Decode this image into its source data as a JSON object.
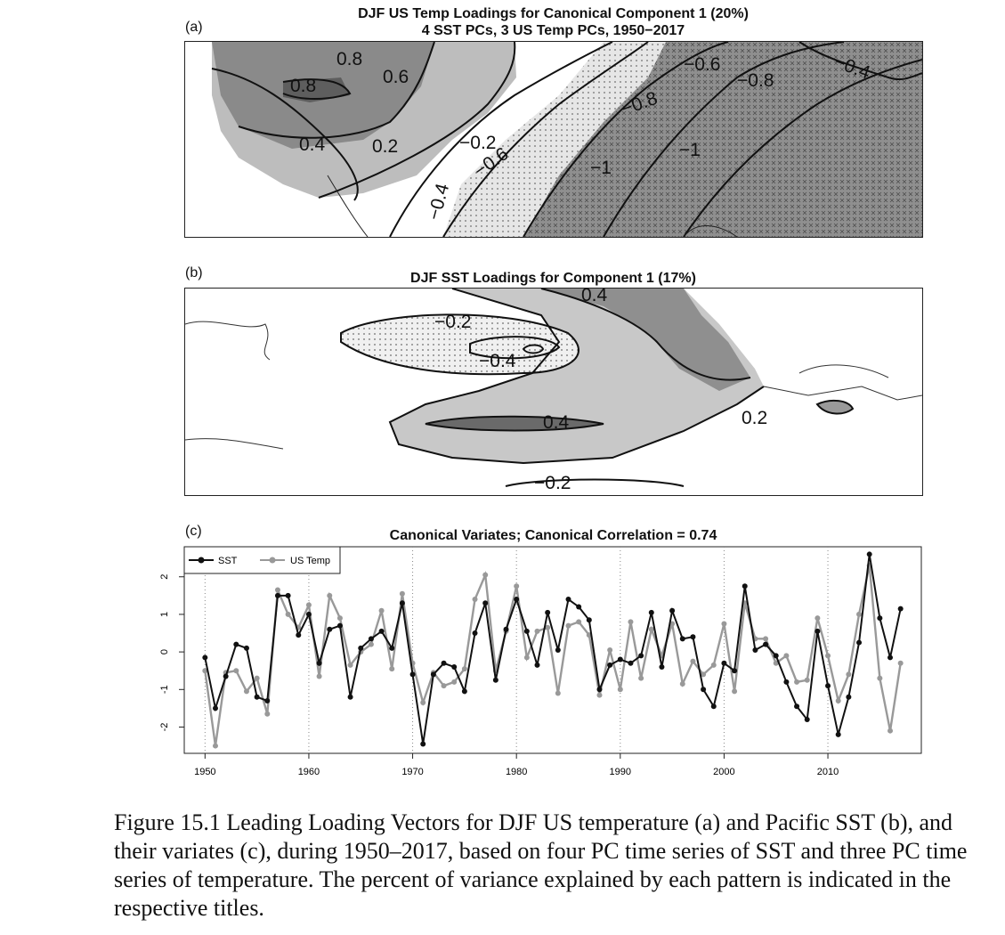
{
  "panels": {
    "a": {
      "label": "(a)",
      "title_line1": "DJF US Temp Loadings for Canonical Component 1 (20%)",
      "title_line2": "4 SST PCs, 3 US Temp PCs, 1950−2017",
      "contour_labels": [
        "0.8",
        "0.8",
        "0.6",
        "0.4",
        "0.2",
        "−0.2",
        "−0.4",
        "−0.6",
        "−0.8",
        "−1",
        "−1",
        "−0.6",
        "−0.8",
        "−0.4"
      ]
    },
    "b": {
      "label": "(b)",
      "title": "DJF SST Loadings for Component 1 (17%)",
      "contour_labels": [
        "0.4",
        "−0.2",
        "−0.4",
        "0.4",
        "0.2",
        "−0.2"
      ]
    },
    "c": {
      "label": "(c)",
      "title": "Canonical Variates; Canonical Correlation = 0.74"
    }
  },
  "chart_data": {
    "type": "line",
    "x": [
      1950,
      1951,
      1952,
      1953,
      1954,
      1955,
      1956,
      1957,
      1958,
      1959,
      1960,
      1961,
      1962,
      1963,
      1964,
      1965,
      1966,
      1967,
      1968,
      1969,
      1970,
      1971,
      1972,
      1973,
      1974,
      1975,
      1976,
      1977,
      1978,
      1979,
      1980,
      1981,
      1982,
      1983,
      1984,
      1985,
      1986,
      1987,
      1988,
      1989,
      1990,
      1991,
      1992,
      1993,
      1994,
      1995,
      1996,
      1997,
      1998,
      1999,
      2000,
      2001,
      2002,
      2003,
      2004,
      2005,
      2006,
      2007,
      2008,
      2009,
      2010,
      2011,
      2012,
      2013,
      2014,
      2015,
      2016,
      2017
    ],
    "series": [
      {
        "name": "SST",
        "color": "#111111",
        "values": [
          -0.15,
          -1.5,
          -0.65,
          0.2,
          0.1,
          -1.2,
          -1.3,
          1.5,
          1.5,
          0.45,
          1.0,
          -0.3,
          0.6,
          0.7,
          -1.2,
          0.1,
          0.35,
          0.55,
          0.1,
          1.3,
          -0.6,
          -2.45,
          -0.6,
          -0.3,
          -0.4,
          -1.05,
          0.5,
          1.3,
          -0.75,
          0.6,
          1.4,
          0.55,
          -0.35,
          1.05,
          0.05,
          1.4,
          1.2,
          0.85,
          -1.0,
          -0.35,
          -0.2,
          -0.3,
          -0.1,
          1.05,
          -0.4,
          1.1,
          0.35,
          0.4,
          -1.0,
          -1.45,
          -0.3,
          -0.5,
          1.75,
          0.05,
          0.2,
          -0.1,
          -0.8,
          -1.45,
          -1.8,
          0.55,
          -0.9,
          -2.2,
          -1.2,
          0.25,
          2.6,
          0.9,
          -0.15,
          1.15
        ]
      },
      {
        "name": "US Temp",
        "color": "#999999",
        "values": [
          -0.5,
          -2.5,
          -0.55,
          -0.5,
          -1.05,
          -0.7,
          -1.65,
          1.65,
          1.0,
          0.65,
          1.25,
          -0.65,
          1.5,
          0.9,
          -0.35,
          0.0,
          0.2,
          1.1,
          -0.45,
          1.55,
          -0.3,
          -1.35,
          -0.55,
          -0.9,
          -0.8,
          -0.45,
          1.4,
          2.05,
          -0.5,
          0.55,
          1.75,
          -0.15,
          0.55,
          0.65,
          -1.1,
          0.7,
          0.8,
          0.45,
          -1.15,
          0.05,
          -1.0,
          0.8,
          -0.7,
          0.6,
          -0.1,
          0.75,
          -0.85,
          -0.25,
          -0.6,
          -0.35,
          0.75,
          -1.05,
          1.3,
          0.35,
          0.35,
          -0.3,
          -0.1,
          -0.8,
          -0.75,
          0.9,
          -0.1,
          -1.3,
          -0.6,
          1.0,
          2.3,
          -0.7,
          -2.1,
          -0.3
        ]
      }
    ],
    "xlim": [
      1948,
      2019
    ],
    "ylim": [
      -2.7,
      2.8
    ],
    "xticks": [
      1950,
      1960,
      1970,
      1980,
      1990,
      2000,
      2010
    ],
    "yticks": [
      -2,
      -1,
      0,
      1,
      2
    ],
    "vlines_dotted": [
      1950,
      1960,
      1970,
      1980,
      1990,
      2000,
      2010
    ],
    "legend": "top-left"
  },
  "caption": "Figure 15.1  Leading Loading Vectors for DJF US temperature (a) and Pacific SST (b), and their variates (c), during 1950–2017, based on four PC time series of SST and three PC time series of temperature. The percent of variance explained by each pattern is indicated in the respective titles."
}
